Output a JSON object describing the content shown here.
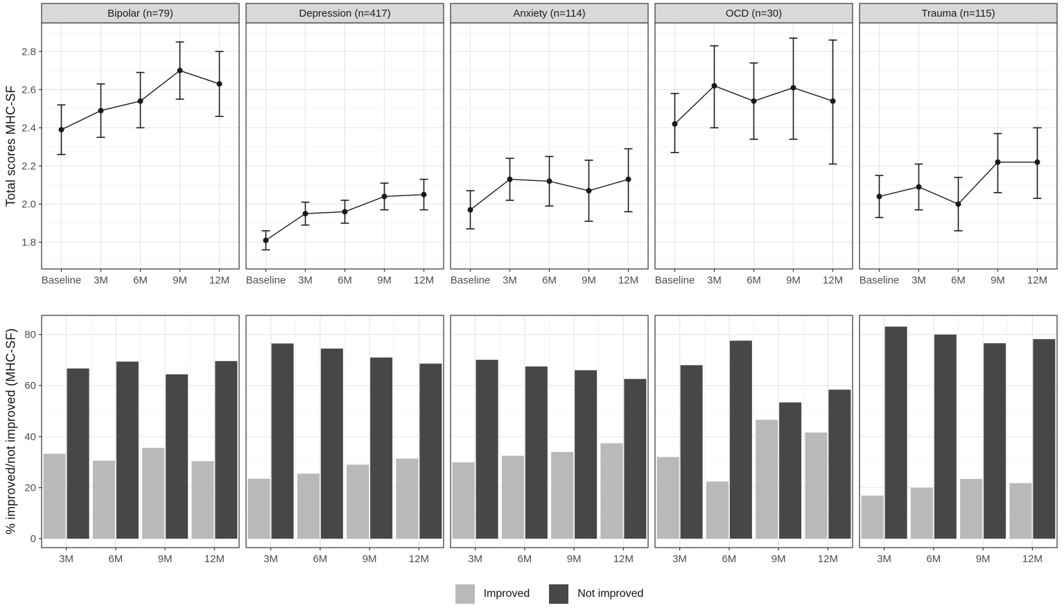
{
  "figure": {
    "background": "#ffffff",
    "colors": {
      "strip_bg": "#d9d9d9",
      "strip_text": "#1a1a1a",
      "panel_border": "#4d4d4d",
      "grid_major": "#e8e8e8",
      "grid_minor": "#f4f4f4",
      "series": "#1a1a1a",
      "axis_text": "#4d4d4d",
      "tick_mark": "#333333",
      "improved": "#b9b9b9",
      "not_improved": "#474747"
    },
    "legend": {
      "items": [
        {
          "label": "Improved",
          "color": "#b9b9b9"
        },
        {
          "label": "Not improved",
          "color": "#474747"
        }
      ]
    }
  },
  "chart_data": [
    {
      "type": "line",
      "subtype": "pointrange-errorbar",
      "ylabel": "Total scores MHC-SF",
      "x": [
        "Baseline",
        "3M",
        "6M",
        "9M",
        "12M"
      ],
      "ylim": [
        1.66,
        2.95
      ],
      "yticks": [
        1.8,
        2.0,
        2.2,
        2.4,
        2.6,
        2.8
      ],
      "tick_format": "1f",
      "grid": "major+minor",
      "panels": [
        {
          "title": "Bipolar (n=79)",
          "mean": [
            2.39,
            2.49,
            2.54,
            2.7,
            2.63
          ],
          "lower": [
            2.26,
            2.35,
            2.4,
            2.55,
            2.46
          ],
          "upper": [
            2.52,
            2.63,
            2.69,
            2.85,
            2.8
          ]
        },
        {
          "title": "Depression (n=417)",
          "mean": [
            1.81,
            1.95,
            1.96,
            2.04,
            2.05
          ],
          "lower": [
            1.76,
            1.89,
            1.9,
            1.97,
            1.97
          ],
          "upper": [
            1.86,
            2.01,
            2.02,
            2.11,
            2.13
          ]
        },
        {
          "title": "Anxiety (n=114)",
          "mean": [
            1.97,
            2.13,
            2.12,
            2.07,
            2.13
          ],
          "lower": [
            1.87,
            2.02,
            1.99,
            1.91,
            1.96
          ],
          "upper": [
            2.07,
            2.24,
            2.25,
            2.23,
            2.29
          ]
        },
        {
          "title": "OCD (n=30)",
          "mean": [
            2.42,
            2.62,
            2.54,
            2.61,
            2.54
          ],
          "lower": [
            2.27,
            2.4,
            2.34,
            2.34,
            2.21
          ],
          "upper": [
            2.58,
            2.83,
            2.74,
            2.87,
            2.86
          ]
        },
        {
          "title": "Trauma (n=115)",
          "mean": [
            2.04,
            2.09,
            2.0,
            2.22,
            2.22
          ],
          "lower": [
            1.93,
            1.97,
            1.86,
            2.06,
            2.03
          ],
          "upper": [
            2.15,
            2.21,
            2.14,
            2.37,
            2.4
          ]
        }
      ]
    },
    {
      "type": "bar",
      "subtype": "grouped",
      "ylabel": "% improved/not improved (MHC-SF)",
      "x": [
        "3M",
        "6M",
        "9M",
        "12M"
      ],
      "ylim": [
        -3.5,
        87.5
      ],
      "yticks": [
        0,
        20,
        40,
        60,
        80
      ],
      "tick_format": "int",
      "grid": "major+minor",
      "series_names": [
        "Improved",
        "Not improved"
      ],
      "panels": [
        {
          "title": "Bipolar (n=79)",
          "improved": [
            33.3,
            30.6,
            35.6,
            30.4
          ],
          "not_improved": [
            66.7,
            69.4,
            64.4,
            69.6
          ]
        },
        {
          "title": "Depression (n=417)",
          "improved": [
            23.5,
            25.5,
            29.0,
            31.4
          ],
          "not_improved": [
            76.5,
            74.5,
            71.0,
            68.6
          ]
        },
        {
          "title": "Anxiety (n=114)",
          "improved": [
            29.9,
            32.5,
            34.0,
            37.4
          ],
          "not_improved": [
            70.1,
            67.5,
            66.0,
            62.6
          ]
        },
        {
          "title": "OCD (n=30)",
          "improved": [
            32.0,
            22.4,
            46.6,
            41.6
          ],
          "not_improved": [
            68.0,
            77.6,
            53.4,
            58.4
          ]
        },
        {
          "title": "Trauma (n=115)",
          "improved": [
            16.9,
            20.0,
            23.4,
            21.8
          ],
          "not_improved": [
            83.1,
            80.0,
            76.6,
            78.2
          ]
        }
      ]
    }
  ]
}
